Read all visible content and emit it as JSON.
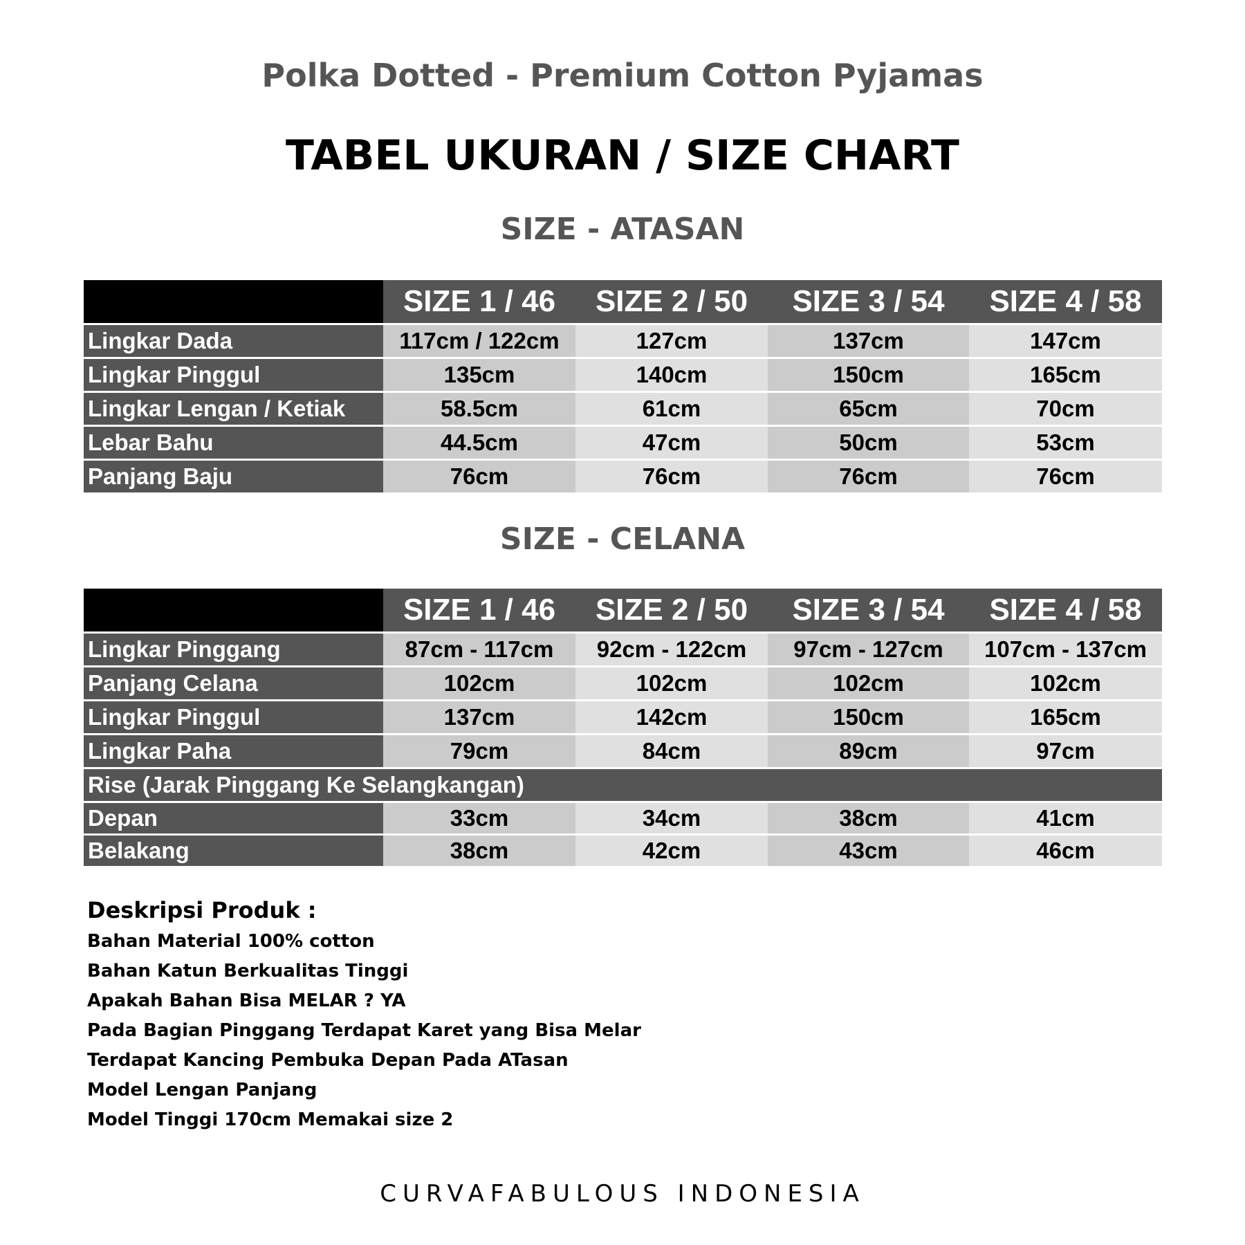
{
  "subtitle": "Polka Dotted - Premium Cotton Pyjamas",
  "title": "TABEL UKURAN / SIZE CHART",
  "sizes": [
    "SIZE 1 / 46",
    "SIZE 2 / 50",
    "SIZE 3 / 54",
    "SIZE 4 / 58"
  ],
  "atasan": {
    "heading": "SIZE - ATASAN",
    "rows": [
      {
        "label": "Lingkar Dada",
        "values": [
          "117cm / 122cm",
          "127cm",
          "137cm",
          "147cm"
        ]
      },
      {
        "label": "Lingkar Pinggul",
        "values": [
          "135cm",
          "140cm",
          "150cm",
          "165cm"
        ]
      },
      {
        "label": "Lingkar Lengan / Ketiak",
        "values": [
          "58.5cm",
          "61cm",
          "65cm",
          "70cm"
        ]
      },
      {
        "label": "Lebar Bahu",
        "values": [
          "44.5cm",
          "47cm",
          "50cm",
          "53cm"
        ]
      },
      {
        "label": "Panjang Baju",
        "values": [
          "76cm",
          "76cm",
          "76cm",
          "76cm"
        ]
      }
    ]
  },
  "celana": {
    "heading": "SIZE - CELANA",
    "rows": [
      {
        "label": "Lingkar Pinggang",
        "values": [
          "87cm - 117cm",
          "92cm - 122cm",
          "97cm - 127cm",
          "107cm - 137cm"
        ]
      },
      {
        "label": "Panjang Celana",
        "values": [
          "102cm",
          "102cm",
          "102cm",
          "102cm"
        ]
      },
      {
        "label": "Lingkar Pinggul",
        "values": [
          "137cm",
          "142cm",
          "150cm",
          "165cm"
        ]
      },
      {
        "label": "Lingkar Paha",
        "values": [
          "79cm",
          "84cm",
          "89cm",
          "97cm"
        ]
      }
    ],
    "rise_label": "Rise (Jarak Pinggang Ke Selangkangan)",
    "rise_rows": [
      {
        "label": "Depan",
        "values": [
          "33cm",
          "34cm",
          "38cm",
          "41cm"
        ]
      },
      {
        "label": "Belakang",
        "values": [
          "38cm",
          "42cm",
          "43cm",
          "46cm"
        ]
      }
    ]
  },
  "description": {
    "heading": "Deskripsi Produk :",
    "lines": [
      "Bahan Material 100% cotton",
      "Bahan Katun Berkualitas Tinggi",
      "Apakah Bahan Bisa MELAR ? YA",
      "Pada Bagian Pinggang Terdapat Karet yang Bisa Melar",
      "Terdapat Kancing Pembuka Depan Pada ATasan",
      "Model Lengan Panjang",
      "Model Tinggi 170cm Memakai size 2"
    ]
  },
  "footer": "CURVAFABULOUS INDONESIA"
}
